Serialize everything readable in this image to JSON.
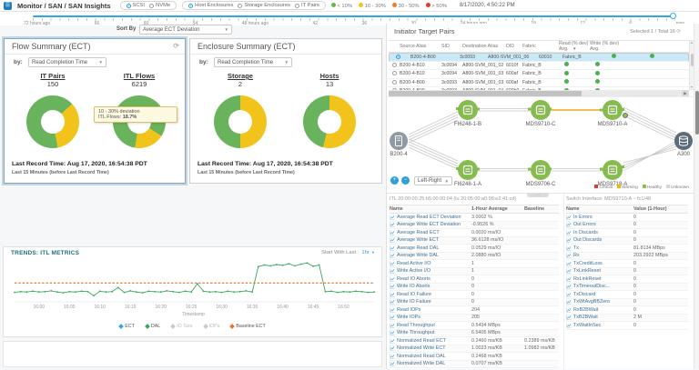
{
  "header": {
    "breadcrumb": "Monitor / SAN / SAN Insights",
    "mode_options": [
      {
        "label": "SCSI",
        "selected": true
      },
      {
        "label": "NVMe",
        "selected": false
      }
    ],
    "scope_options": [
      {
        "label": "Host Enclosures",
        "selected": true
      },
      {
        "label": "Storage Enclosures",
        "selected": false
      },
      {
        "label": "IT Pairs",
        "selected": false
      }
    ],
    "deviation_legend": [
      {
        "label": "< 10%",
        "color": "#62bb46"
      },
      {
        "label": "10 - 30%",
        "color": "#f2c31b"
      },
      {
        "label": "30 - 50%",
        "color": "#f07c22"
      },
      {
        "label": "> 50%",
        "color": "#e23b2e"
      }
    ],
    "timestamp": "8/17/2020, 4:50:22 PM"
  },
  "timeline": {
    "labels": [
      "72 hours ago",
      "66",
      "60",
      "54",
      "48 hours ago",
      "42",
      "36",
      "30",
      "24 hours ago",
      "18",
      "12",
      "6",
      "now"
    ],
    "sort_by_label": "Sort By",
    "sort_by_value": "Average ECT Deviation"
  },
  "flow_summary": {
    "title": "Flow Summary (ECT)",
    "by_label": "by:",
    "by_value": "Read Completion Time",
    "donut1_label": "IT Pairs",
    "donut1_value": "150",
    "donut2_label": "ITL Flows",
    "donut2_value": "6219",
    "tooltip_line1": "10 - 30% deviation",
    "tooltip_line2": "ITL Flows:",
    "tooltip_pct": "18.7%",
    "last_record": "Last Record Time: Aug 17, 2020, 16:54:38 PDT",
    "window_note": "Last 15 Minutes (before Last Record Time)"
  },
  "enclosure_summary": {
    "title": "Enclosure Summary (ECT)",
    "by_label": "by:",
    "by_value": "Read Completion Time",
    "donut1_label": "Storage",
    "donut1_value": "2",
    "donut2_label": "Hosts",
    "donut2_value": "13",
    "last_record": "Last Record Time: Aug 17, 2020, 16:54:38 PDT",
    "window_note": "Last 15 Minutes (before Last Record Time)"
  },
  "itp": {
    "title": "Initiator Target Pairs",
    "selection_info": "Selected 1 / Total 16",
    "col_source": "Source Alias",
    "col_sid": "SID",
    "col_dest": "Destination Alias",
    "col_did": "DID",
    "col_fabric": "Fabric",
    "col_read": "Read (% dev)",
    "col_write": "Write (% dev)",
    "col_avg": "Avg.",
    "rows": [
      {
        "src": "B200-4-B00",
        "sid": "3c0093",
        "dst": "A800-SVM_001_06",
        "did": "60010",
        "fabric": "Fabric_B",
        "read": "healthy",
        "write": "healthy",
        "selected": true,
        "partial": false
      },
      {
        "src": "B200-4-B10",
        "sid": "3c0094",
        "dst": "A800-SVM_001_02",
        "did": "6010f",
        "fabric": "Fabric_B",
        "read": "healthy",
        "write": "healthy",
        "selected": false,
        "partial": false
      },
      {
        "src": "B200-4-B10",
        "sid": "3c0094",
        "dst": "A800-SVM_001_03",
        "did": "600af",
        "fabric": "Fabric_B",
        "read": "healthy",
        "write": "healthy",
        "selected": false,
        "partial": false
      },
      {
        "src": "B200-4-B00",
        "sid": "3c0093",
        "dst": "A800-SVM_001_03",
        "did": "600af",
        "fabric": "Fabric_B",
        "read": "healthy",
        "write": "healthy",
        "selected": false,
        "partial": false
      },
      {
        "src": "B200-4-B00",
        "sid": "3c0093",
        "dst": "A800-SVM_001_04",
        "did": "600b0",
        "fabric": "Fabric_B",
        "read": "healthy",
        "write": "healthy",
        "selected": false,
        "partial": true
      }
    ]
  },
  "topology": {
    "nodes": [
      {
        "label": "B200-4",
        "type": "server",
        "health": "unknown"
      },
      {
        "label": "FI6248-1-B",
        "type": "switch",
        "health": "healthy"
      },
      {
        "label": "MDS9710-C",
        "type": "switch",
        "health": "healthy"
      },
      {
        "label": "MDS9710-A",
        "type": "switch",
        "health": "healthy"
      },
      {
        "label": "A300",
        "type": "storage",
        "health": "unknown"
      },
      {
        "label": "FI6248-1-A",
        "type": "switch",
        "health": "healthy"
      },
      {
        "label": "MDS9706-C",
        "type": "switch",
        "health": "healthy"
      },
      {
        "label": "MDS9718-A",
        "type": "switch",
        "health": "healthy"
      }
    ],
    "layout_value": "Left-Right",
    "legend": [
      {
        "label": "Critical",
        "color": "#e53935"
      },
      {
        "label": "Warning",
        "color": "#f0b400"
      },
      {
        "label": "Healthy",
        "color": "#8bc34a"
      },
      {
        "label": "Unknown",
        "color": "#cfd8dc"
      }
    ]
  },
  "trends": {
    "title": "TRENDS: ITL METRICS",
    "start_with_last_label": "Start With Last :",
    "start_with_last_value": "1hr",
    "xlabel": "Timestamp",
    "legend": [
      {
        "label": "ECT",
        "color": "#2aa9e0",
        "enabled": true
      },
      {
        "label": "DAL",
        "color": "#3aa659",
        "enabled": true
      },
      {
        "label": "IO Size",
        "color": "#c0c0c0",
        "enabled": false
      },
      {
        "label": "IOPs",
        "color": "#c0c0c0",
        "enabled": false
      },
      {
        "label": "Baseline ECT",
        "color": "#e2762d",
        "enabled": true
      }
    ]
  },
  "itl_metrics": {
    "title": "ITL 20:00:00:25:b5:00:00:04 (lu 20:05:00:a0:98:e2:41:cd)",
    "col_name": "Name",
    "col_avg": "1-Hour Average",
    "col_baseline": "Baseline",
    "rows": [
      [
        "Average Read ECT Deviation",
        "3.0002 %",
        ""
      ],
      [
        "Average Write ECT Deviation",
        "-0.9526 %",
        ""
      ],
      [
        "Average Read ECT",
        "0.0020 ms/IO",
        ""
      ],
      [
        "Average Write ECT",
        "36.6128 ms/IO",
        ""
      ],
      [
        "Average Read DAL",
        "0.0529 ms/IO",
        ""
      ],
      [
        "Average Write DAL",
        "2.0880 ms/IO",
        ""
      ],
      [
        "Read Active I/O",
        "1",
        ""
      ],
      [
        "Write Active I/O",
        "1",
        ""
      ],
      [
        "Read IO Aborts",
        "0",
        ""
      ],
      [
        "Write IO Aborts",
        "0",
        ""
      ],
      [
        "Read IO Failure",
        "0",
        ""
      ],
      [
        "Write IO Failure",
        "0",
        ""
      ],
      [
        "Read IOPs",
        "204",
        ""
      ],
      [
        "Write IOPs",
        "205",
        ""
      ],
      [
        "Read Throughput",
        "0.5434 MBps",
        ""
      ],
      [
        "Write Throughput",
        "6.5405 MBps",
        ""
      ],
      [
        "Normalized Read ECT",
        "0.2460 ms/KB",
        "0.2389 ms/KB"
      ],
      [
        "Normalized Write ECT",
        "1.0023 ms/KB",
        "1.0982 ms/KB"
      ],
      [
        "Normalized Read DAL",
        "0.2468 ms/KB",
        ""
      ],
      [
        "Normalized Write DAL",
        "0.0707 ms/KB",
        ""
      ]
    ]
  },
  "switch_interface": {
    "title": "Switch Interface: MDS9710-A ~ fc1/48",
    "col_name": "Name",
    "col_value": "Value (1-Hour)",
    "rows": [
      [
        "In Errors",
        "0"
      ],
      [
        "Out Errors",
        "0"
      ],
      [
        "In Discards",
        "0"
      ],
      [
        "Out Discards",
        "0"
      ],
      [
        "Tx",
        "81.8134 MBps"
      ],
      [
        "Rx",
        "203.2922 MBps"
      ],
      [
        "TxCreditLoss",
        "0"
      ],
      [
        "TxLinkReset",
        "0"
      ],
      [
        "RxLinkReset",
        "0"
      ],
      [
        "TxTimeoutDisc...",
        "0"
      ],
      [
        "TxDiscard",
        "0"
      ],
      [
        "TxWtAvgBBZero",
        "0"
      ],
      [
        "RxB2BWait",
        "0"
      ],
      [
        "TxB2BWait",
        "2 M"
      ],
      [
        "TxWaitInSec",
        "0"
      ]
    ]
  },
  "chart_data": [
    {
      "type": "pie",
      "variant": "donut",
      "title": "IT Pairs",
      "total": 150,
      "slices": [
        {
          "label": "< 10% deviation",
          "pct": 13,
          "color": "#68b35b"
        },
        {
          "label": "10 - 30% deviation",
          "pct": 34,
          "color": "#f2c31b"
        },
        {
          "label": "< 10% deviation",
          "pct": 53,
          "color": "#68b35b"
        }
      ]
    },
    {
      "type": "pie",
      "variant": "donut",
      "title": "ITL Flows",
      "total": 6219,
      "slices": [
        {
          "label": "< 10% deviation",
          "pct": 34,
          "color": "#68b35b"
        },
        {
          "label": "10 - 30% deviation",
          "pct": 18.7,
          "color": "#f2c31b"
        },
        {
          "label": "< 10% deviation",
          "pct": 47.3,
          "color": "#68b35b"
        }
      ]
    },
    {
      "type": "pie",
      "variant": "donut",
      "title": "Storage",
      "total": 2,
      "slices": [
        {
          "label": "10 - 30% deviation",
          "pct": 50,
          "color": "#f2c31b"
        },
        {
          "label": "< 10% deviation",
          "pct": 50,
          "color": "#68b35b"
        }
      ]
    },
    {
      "type": "pie",
      "variant": "donut",
      "title": "Hosts",
      "total": 13,
      "slices": [
        {
          "label": "10 - 30% deviation",
          "pct": 54,
          "color": "#f2c31b"
        },
        {
          "label": "< 10% deviation",
          "pct": 46,
          "color": "#68b35b"
        }
      ]
    },
    {
      "type": "line",
      "title": "TRENDS: ITL METRICS",
      "xlabel": "Timestamp",
      "ylim": [
        0,
        100
      ],
      "x_ticks": [
        "16:00",
        "16:05",
        "16:10",
        "16:15",
        "16:20",
        "16:25",
        "16:30",
        "16:35",
        "16:40",
        "16:45",
        "16:50"
      ],
      "tick_idx": [
        4,
        9,
        14,
        19,
        24,
        29,
        34,
        39,
        44,
        49,
        54
      ],
      "series": [
        {
          "name": "DAL",
          "color": "#3aa659",
          "values": [
            23,
            25,
            24,
            26,
            24,
            25,
            27,
            24,
            22,
            25,
            24,
            26,
            25,
            15,
            26,
            24,
            25,
            35,
            23,
            27,
            24,
            22,
            26,
            25,
            24,
            27,
            25,
            23,
            26,
            24,
            44,
            26,
            24,
            25,
            23,
            26,
            24,
            25,
            27,
            24,
            86,
            90,
            88,
            91,
            89,
            93,
            88,
            92,
            95,
            87,
            90,
            25,
            26,
            23,
            25,
            24,
            26,
            25,
            23,
            24
          ]
        },
        {
          "name": "Baseline ECT",
          "color": "#e2762d",
          "style": "dashed",
          "constant": 46
        }
      ]
    }
  ]
}
